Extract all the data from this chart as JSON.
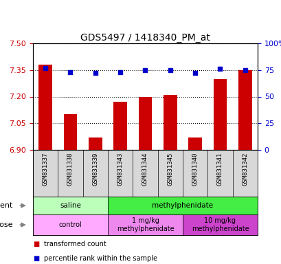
{
  "title": "GDS5497 / 1418340_PM_at",
  "samples": [
    "GSM831337",
    "GSM831338",
    "GSM831339",
    "GSM831343",
    "GSM831344",
    "GSM831345",
    "GSM831340",
    "GSM831341",
    "GSM831342"
  ],
  "bar_values": [
    7.38,
    7.1,
    6.97,
    7.17,
    7.2,
    7.21,
    6.97,
    7.3,
    7.35
  ],
  "percentile_values": [
    77,
    73,
    72,
    73,
    75,
    75,
    72,
    76,
    75
  ],
  "ylim_left": [
    6.9,
    7.5
  ],
  "yticks_left": [
    6.9,
    7.05,
    7.2,
    7.35,
    7.5
  ],
  "ylim_right": [
    0,
    100
  ],
  "yticks_right": [
    0,
    25,
    50,
    75,
    100
  ],
  "yticklabels_right": [
    "0",
    "25",
    "50",
    "75",
    "100%"
  ],
  "bar_color": "#cc0000",
  "dot_color": "#0000cc",
  "agent_groups": [
    {
      "label": "saline",
      "color": "#bbffbb",
      "start": 0,
      "end": 3
    },
    {
      "label": "methylphenidate",
      "color": "#44ee44",
      "start": 3,
      "end": 9
    }
  ],
  "dose_groups": [
    {
      "label": "control",
      "color": "#ffaaff",
      "start": 0,
      "end": 3
    },
    {
      "label": "1 mg/kg\nmethylphenidate",
      "color": "#ee88ee",
      "start": 3,
      "end": 6
    },
    {
      "label": "10 mg/kg\nmethylphenidate",
      "color": "#cc44cc",
      "start": 6,
      "end": 9
    }
  ],
  "legend_items": [
    {
      "color": "#cc0000",
      "label": "transformed count"
    },
    {
      "color": "#0000cc",
      "label": "percentile rank within the sample"
    }
  ],
  "tick_label_color_left": "#cc0000",
  "tick_label_color_right": "#0000cc",
  "background_color": "#ffffff",
  "plot_bg_color": "#ffffff",
  "sample_bg_color": "#d8d8d8"
}
